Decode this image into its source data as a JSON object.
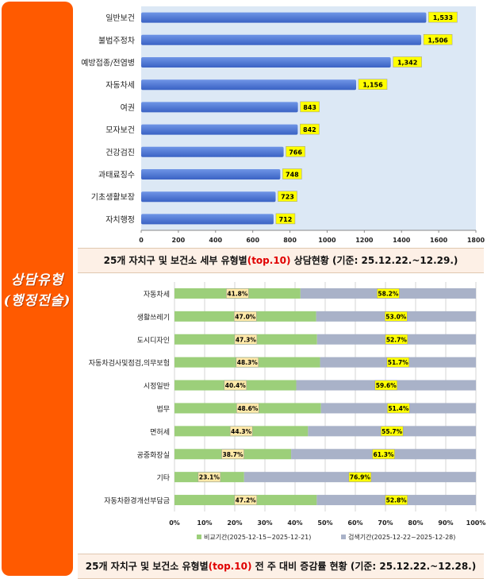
{
  "sidebar": {
    "line1": "상담유형",
    "line2": "(행정전술)"
  },
  "caption1": {
    "pre": "25개 자치구 및 보건소 세부 유형별",
    "hl": "(top.10)",
    "post": " 상담현황  (기준: 25.12.22.~12.29.)"
  },
  "caption2": {
    "pre": "25개 자치구 및 보건소 유형별",
    "hl": "(top.10)",
    "post": " 전 주 대비 증감률 현황 (기준: 25.12.22.~12.28.)"
  },
  "chart_data": [
    {
      "type": "bar",
      "orientation": "horizontal",
      "categories": [
        "일반보건",
        "불법주정차",
        "예방접종/전염병",
        "자동차세",
        "여권",
        "모자보건",
        "건강검진",
        "과태료징수",
        "기초생활보장",
        "자치행정"
      ],
      "values": [
        1533,
        1506,
        1342,
        1156,
        843,
        842,
        766,
        748,
        723,
        712
      ],
      "value_labels": [
        "1,533",
        "1,506",
        "1,342",
        "1,156",
        "843",
        "842",
        "766",
        "748",
        "723",
        "712"
      ],
      "xlim": [
        0,
        1800
      ],
      "xticks": [
        "0",
        "200",
        "400",
        "600",
        "800",
        "1000",
        "1200",
        "1400",
        "1600",
        "1800"
      ],
      "colors": {
        "bar": "#3a62c4",
        "plot_bg": "#dce8f5",
        "label_bg": "#ffff00"
      }
    },
    {
      "type": "bar",
      "orientation": "horizontal",
      "stacked": "percent",
      "categories": [
        "자동차세",
        "생활쓰레기",
        "도시디자인",
        "자동차검사및점검,의무보험",
        "시정일반",
        "법무",
        "면허세",
        "공중화장실",
        "기타",
        "자동차환경개선부담금"
      ],
      "series": [
        {
          "name": "비교기간(2025-12-15~2025-12-21)",
          "values": [
            41.8,
            47.0,
            47.3,
            48.3,
            40.4,
            48.6,
            44.3,
            38.7,
            23.1,
            47.2
          ],
          "labels": [
            "41.8%",
            "47.0%",
            "47.3%",
            "48.3%",
            "40.4%",
            "48.6%",
            "44.3%",
            "38.7%",
            "23.1%",
            "47.2%"
          ],
          "color": "#9ccf7a"
        },
        {
          "name": "검색기간(2025-12-22~2025-12-28)",
          "values": [
            58.2,
            53.0,
            52.7,
            51.7,
            59.6,
            51.4,
            55.7,
            61.3,
            76.9,
            52.8
          ],
          "labels": [
            "58.2%",
            "53.0%",
            "52.7%",
            "51.7%",
            "59.6%",
            "51.4%",
            "55.7%",
            "61.3%",
            "76.9%",
            "52.8%"
          ],
          "color": "#a9b2c8"
        }
      ],
      "xlim": [
        0,
        100
      ],
      "xticks": [
        "0%",
        "10%",
        "20%",
        "30%",
        "40%",
        "50%",
        "60%",
        "70%",
        "80%",
        "90%",
        "100%"
      ],
      "legend": "bottom",
      "grid": true
    }
  ]
}
